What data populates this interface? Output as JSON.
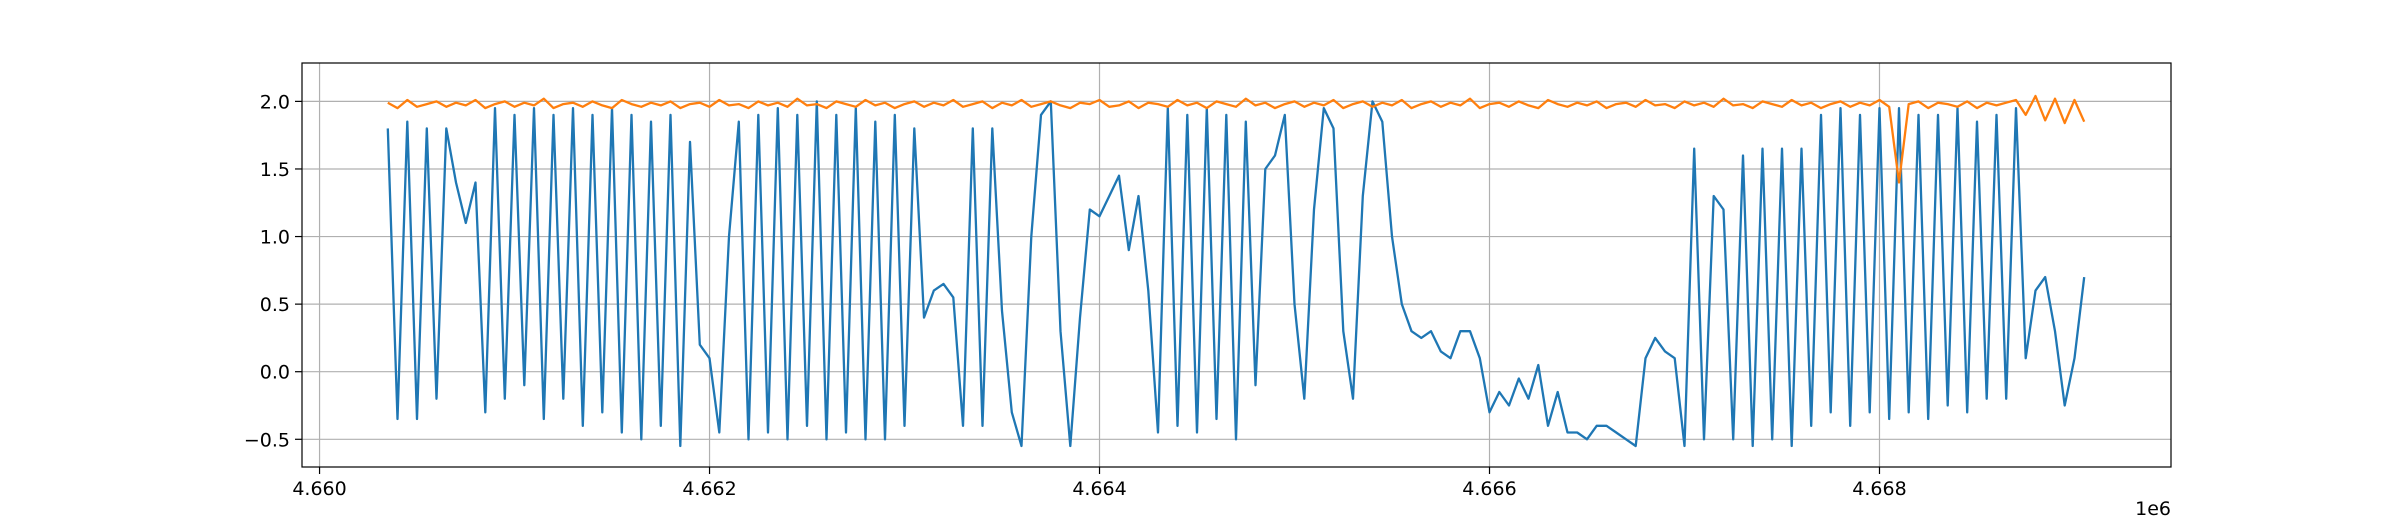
{
  "chart_data": {
    "type": "line",
    "x": [
      4660350,
      4660400,
      4660450,
      4660500,
      4660550,
      4660600,
      4660650,
      4660700,
      4660750,
      4660800,
      4660850,
      4660900,
      4660950,
      4661000,
      4661050,
      4661100,
      4661150,
      4661200,
      4661250,
      4661300,
      4661350,
      4661400,
      4661450,
      4661500,
      4661550,
      4661600,
      4661650,
      4661700,
      4661750,
      4661800,
      4661850,
      4661900,
      4661950,
      4662000,
      4662050,
      4662100,
      4662150,
      4662200,
      4662250,
      4662300,
      4662350,
      4662400,
      4662450,
      4662500,
      4662550,
      4662600,
      4662650,
      4662700,
      4662750,
      4662800,
      4662850,
      4662900,
      4662950,
      4663000,
      4663050,
      4663100,
      4663150,
      4663200,
      4663250,
      4663300,
      4663350,
      4663400,
      4663450,
      4663500,
      4663550,
      4663600,
      4663650,
      4663700,
      4663750,
      4663800,
      4663850,
      4663900,
      4663950,
      4664000,
      4664050,
      4664100,
      4664150,
      4664200,
      4664250,
      4664300,
      4664350,
      4664400,
      4664450,
      4664500,
      4664550,
      4664600,
      4664650,
      4664700,
      4664750,
      4664800,
      4664850,
      4664900,
      4664950,
      4665000,
      4665050,
      4665100,
      4665150,
      4665200,
      4665250,
      4665300,
      4665350,
      4665400,
      4665450,
      4665500,
      4665550,
      4665600,
      4665650,
      4665700,
      4665750,
      4665800,
      4665850,
      4665900,
      4665950,
      4666000,
      4666050,
      4666100,
      4666150,
      4666200,
      4666250,
      4666300,
      4666350,
      4666400,
      4666450,
      4666500,
      4666550,
      4666600,
      4666650,
      4666700,
      4666750,
      4666800,
      4666850,
      4666900,
      4666950,
      4667000,
      4667050,
      4667100,
      4667150,
      4667200,
      4667250,
      4667300,
      4667350,
      4667400,
      4667450,
      4667500,
      4667550,
      4667600,
      4667650,
      4667700,
      4667750,
      4667800,
      4667850,
      4667900,
      4667950,
      4668000,
      4668050,
      4668100,
      4668150,
      4668200,
      4668250,
      4668300,
      4668350,
      4668400,
      4668450,
      4668500,
      4668550,
      4668600,
      4668650,
      4668700,
      4668750,
      4668800,
      4668850,
      4668900,
      4668950,
      4669000,
      4669050
    ],
    "series": [
      {
        "color": "#1f77b4",
        "values": [
          1.8,
          -0.35,
          1.85,
          -0.35,
          1.8,
          -0.2,
          1.8,
          1.4,
          1.1,
          1.4,
          -0.3,
          1.95,
          -0.2,
          1.9,
          -0.1,
          1.95,
          -0.35,
          1.9,
          -0.2,
          1.95,
          -0.4,
          1.9,
          -0.3,
          1.95,
          -0.45,
          1.9,
          -0.5,
          1.85,
          -0.4,
          1.9,
          -0.55,
          1.7,
          0.2,
          0.1,
          -0.45,
          1.0,
          1.85,
          -0.5,
          1.9,
          -0.45,
          1.95,
          -0.5,
          1.9,
          -0.4,
          2.0,
          -0.5,
          1.9,
          -0.45,
          1.95,
          -0.5,
          1.85,
          -0.5,
          1.9,
          -0.4,
          1.8,
          0.4,
          0.6,
          0.65,
          0.55,
          -0.4,
          1.8,
          -0.4,
          1.8,
          0.45,
          -0.3,
          -0.55,
          1.0,
          1.9,
          2.0,
          0.3,
          -0.55,
          0.4,
          1.2,
          1.15,
          1.3,
          1.45,
          0.9,
          1.3,
          0.6,
          -0.45,
          1.95,
          -0.4,
          1.9,
          -0.45,
          1.95,
          -0.35,
          1.9,
          -0.5,
          1.85,
          -0.1,
          1.5,
          1.6,
          1.9,
          0.5,
          -0.2,
          1.2,
          1.95,
          1.8,
          0.3,
          -0.2,
          1.3,
          2.0,
          1.85,
          1.0,
          0.5,
          0.3,
          0.25,
          0.3,
          0.15,
          0.1,
          0.3,
          0.3,
          0.1,
          -0.3,
          -0.15,
          -0.25,
          -0.05,
          -0.2,
          0.05,
          -0.4,
          -0.15,
          -0.45,
          -0.45,
          -0.5,
          -0.4,
          -0.4,
          -0.45,
          -0.5,
          -0.55,
          0.1,
          0.25,
          0.15,
          0.1,
          -0.55,
          1.65,
          -0.5,
          1.3,
          1.2,
          -0.5,
          1.6,
          -0.55,
          1.65,
          -0.5,
          1.65,
          -0.55,
          1.65,
          -0.4,
          1.9,
          -0.3,
          1.95,
          -0.4,
          1.9,
          -0.3,
          1.95,
          -0.35,
          1.95,
          -0.3,
          1.9,
          -0.35,
          1.9,
          -0.25,
          1.95,
          -0.3,
          1.85,
          -0.2,
          1.9,
          -0.2,
          1.95,
          0.1,
          0.6,
          0.7,
          0.3,
          -0.25,
          0.1,
          0.7
        ]
      },
      {
        "color": "#ff7f0e",
        "values": [
          1.99,
          1.95,
          2.01,
          1.96,
          1.98,
          2.0,
          1.96,
          1.99,
          1.97,
          2.01,
          1.95,
          1.98,
          2.0,
          1.96,
          1.99,
          1.97,
          2.02,
          1.95,
          1.98,
          1.99,
          1.96,
          2.0,
          1.97,
          1.95,
          2.01,
          1.98,
          1.96,
          1.99,
          1.97,
          2.0,
          1.95,
          1.98,
          1.99,
          1.96,
          2.01,
          1.97,
          1.98,
          1.95,
          2.0,
          1.97,
          1.99,
          1.96,
          2.02,
          1.97,
          1.98,
          1.95,
          2.0,
          1.98,
          1.96,
          2.01,
          1.97,
          1.99,
          1.95,
          1.98,
          2.0,
          1.96,
          1.99,
          1.97,
          2.01,
          1.96,
          1.98,
          2.0,
          1.95,
          1.99,
          1.97,
          2.01,
          1.96,
          1.98,
          2.0,
          1.97,
          1.95,
          1.99,
          1.98,
          2.01,
          1.96,
          1.97,
          2.0,
          1.95,
          1.99,
          1.98,
          1.96,
          2.01,
          1.97,
          1.99,
          1.95,
          2.0,
          1.98,
          1.96,
          2.02,
          1.97,
          1.99,
          1.95,
          1.98,
          2.0,
          1.96,
          1.99,
          1.97,
          2.01,
          1.95,
          1.98,
          2.0,
          1.96,
          1.99,
          1.97,
          2.01,
          1.95,
          1.98,
          2.0,
          1.96,
          1.99,
          1.97,
          2.02,
          1.95,
          1.98,
          1.99,
          1.96,
          2.0,
          1.97,
          1.95,
          2.01,
          1.98,
          1.96,
          1.99,
          1.97,
          2.0,
          1.95,
          1.98,
          1.99,
          1.96,
          2.01,
          1.97,
          1.98,
          1.95,
          2.0,
          1.97,
          1.99,
          1.96,
          2.02,
          1.97,
          1.98,
          1.95,
          2.0,
          1.98,
          1.96,
          2.01,
          1.97,
          1.99,
          1.95,
          1.98,
          2.0,
          1.96,
          1.99,
          1.97,
          2.01,
          1.96,
          1.4,
          1.98,
          2.0,
          1.95,
          1.99,
          1.98,
          1.96,
          2.0,
          1.95,
          1.99,
          1.97,
          1.99,
          2.01,
          1.9,
          2.04,
          1.86,
          2.02,
          1.84,
          2.01,
          1.85
        ]
      }
    ],
    "xlim": [
      4659910,
      4669495
    ],
    "xticks": [
      {
        "value": 4660000,
        "label": "4.660"
      },
      {
        "value": 4662000,
        "label": "4.662"
      },
      {
        "value": 4664000,
        "label": "4.664"
      },
      {
        "value": 4666000,
        "label": "4.666"
      },
      {
        "value": 4668000,
        "label": "4.668"
      }
    ],
    "x_offset_label": "1e6",
    "ylim": [
      -0.705,
      2.284
    ],
    "yticks": [
      {
        "value": -0.5,
        "label": "−0.5"
      },
      {
        "value": 0,
        "label": "0.0"
      },
      {
        "value": 0.5,
        "label": "0.5"
      },
      {
        "value": 1,
        "label": "1.0"
      },
      {
        "value": 1.5,
        "label": "1.5"
      },
      {
        "value": 2,
        "label": "2.0"
      }
    ],
    "grid": true
  }
}
